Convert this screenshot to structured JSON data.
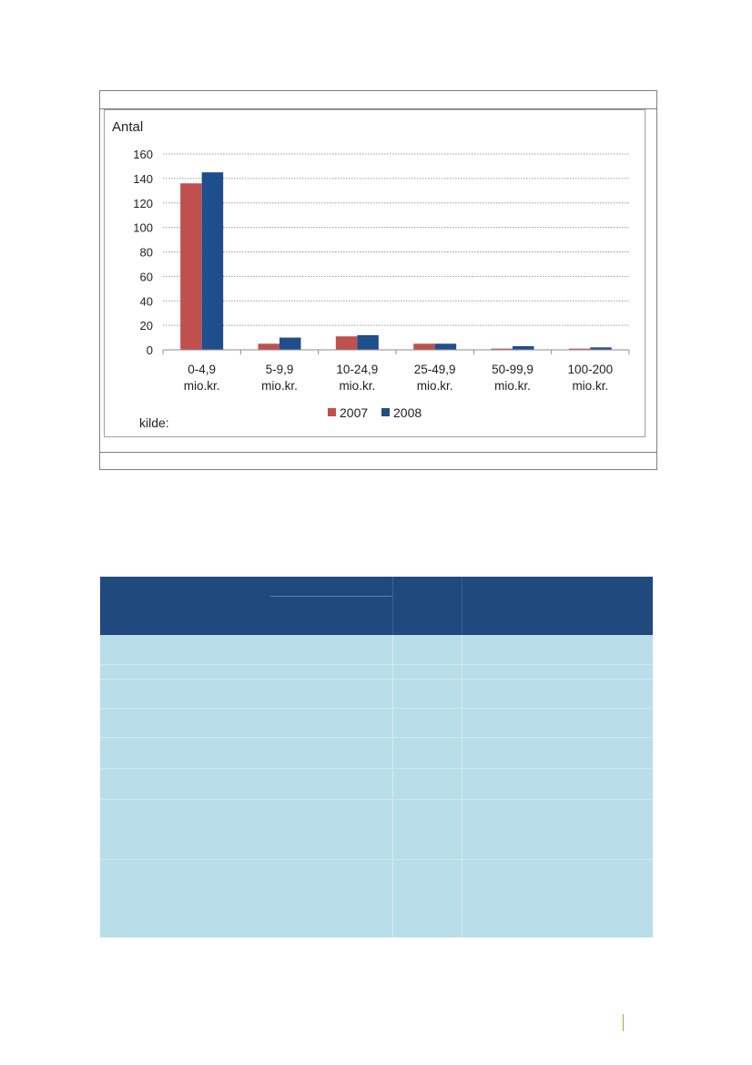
{
  "chart_data": {
    "type": "bar",
    "ylabel": "Antal",
    "ylim": [
      0,
      160
    ],
    "yticks": [
      "0",
      "20",
      "40",
      "60",
      "80",
      "100",
      "120",
      "140",
      "160"
    ],
    "categories": [
      [
        "0-4,9",
        "mio.kr."
      ],
      [
        "5-9,9",
        "mio.kr."
      ],
      [
        "10-24,9",
        "mio.kr."
      ],
      [
        "25-49,9",
        "mio.kr."
      ],
      [
        "50-99,9",
        "mio.kr."
      ],
      [
        "100-200",
        "mio.kr."
      ]
    ],
    "series": [
      {
        "name": "2007",
        "color": "#c0504d",
        "values": [
          136,
          5,
          11,
          5,
          1,
          1
        ]
      },
      {
        "name": "2008",
        "color": "#1f4e8c",
        "values": [
          145,
          10,
          12,
          5,
          3,
          2
        ]
      }
    ],
    "grid": true,
    "legend": "bottom",
    "source_label": "kilde:"
  }
}
